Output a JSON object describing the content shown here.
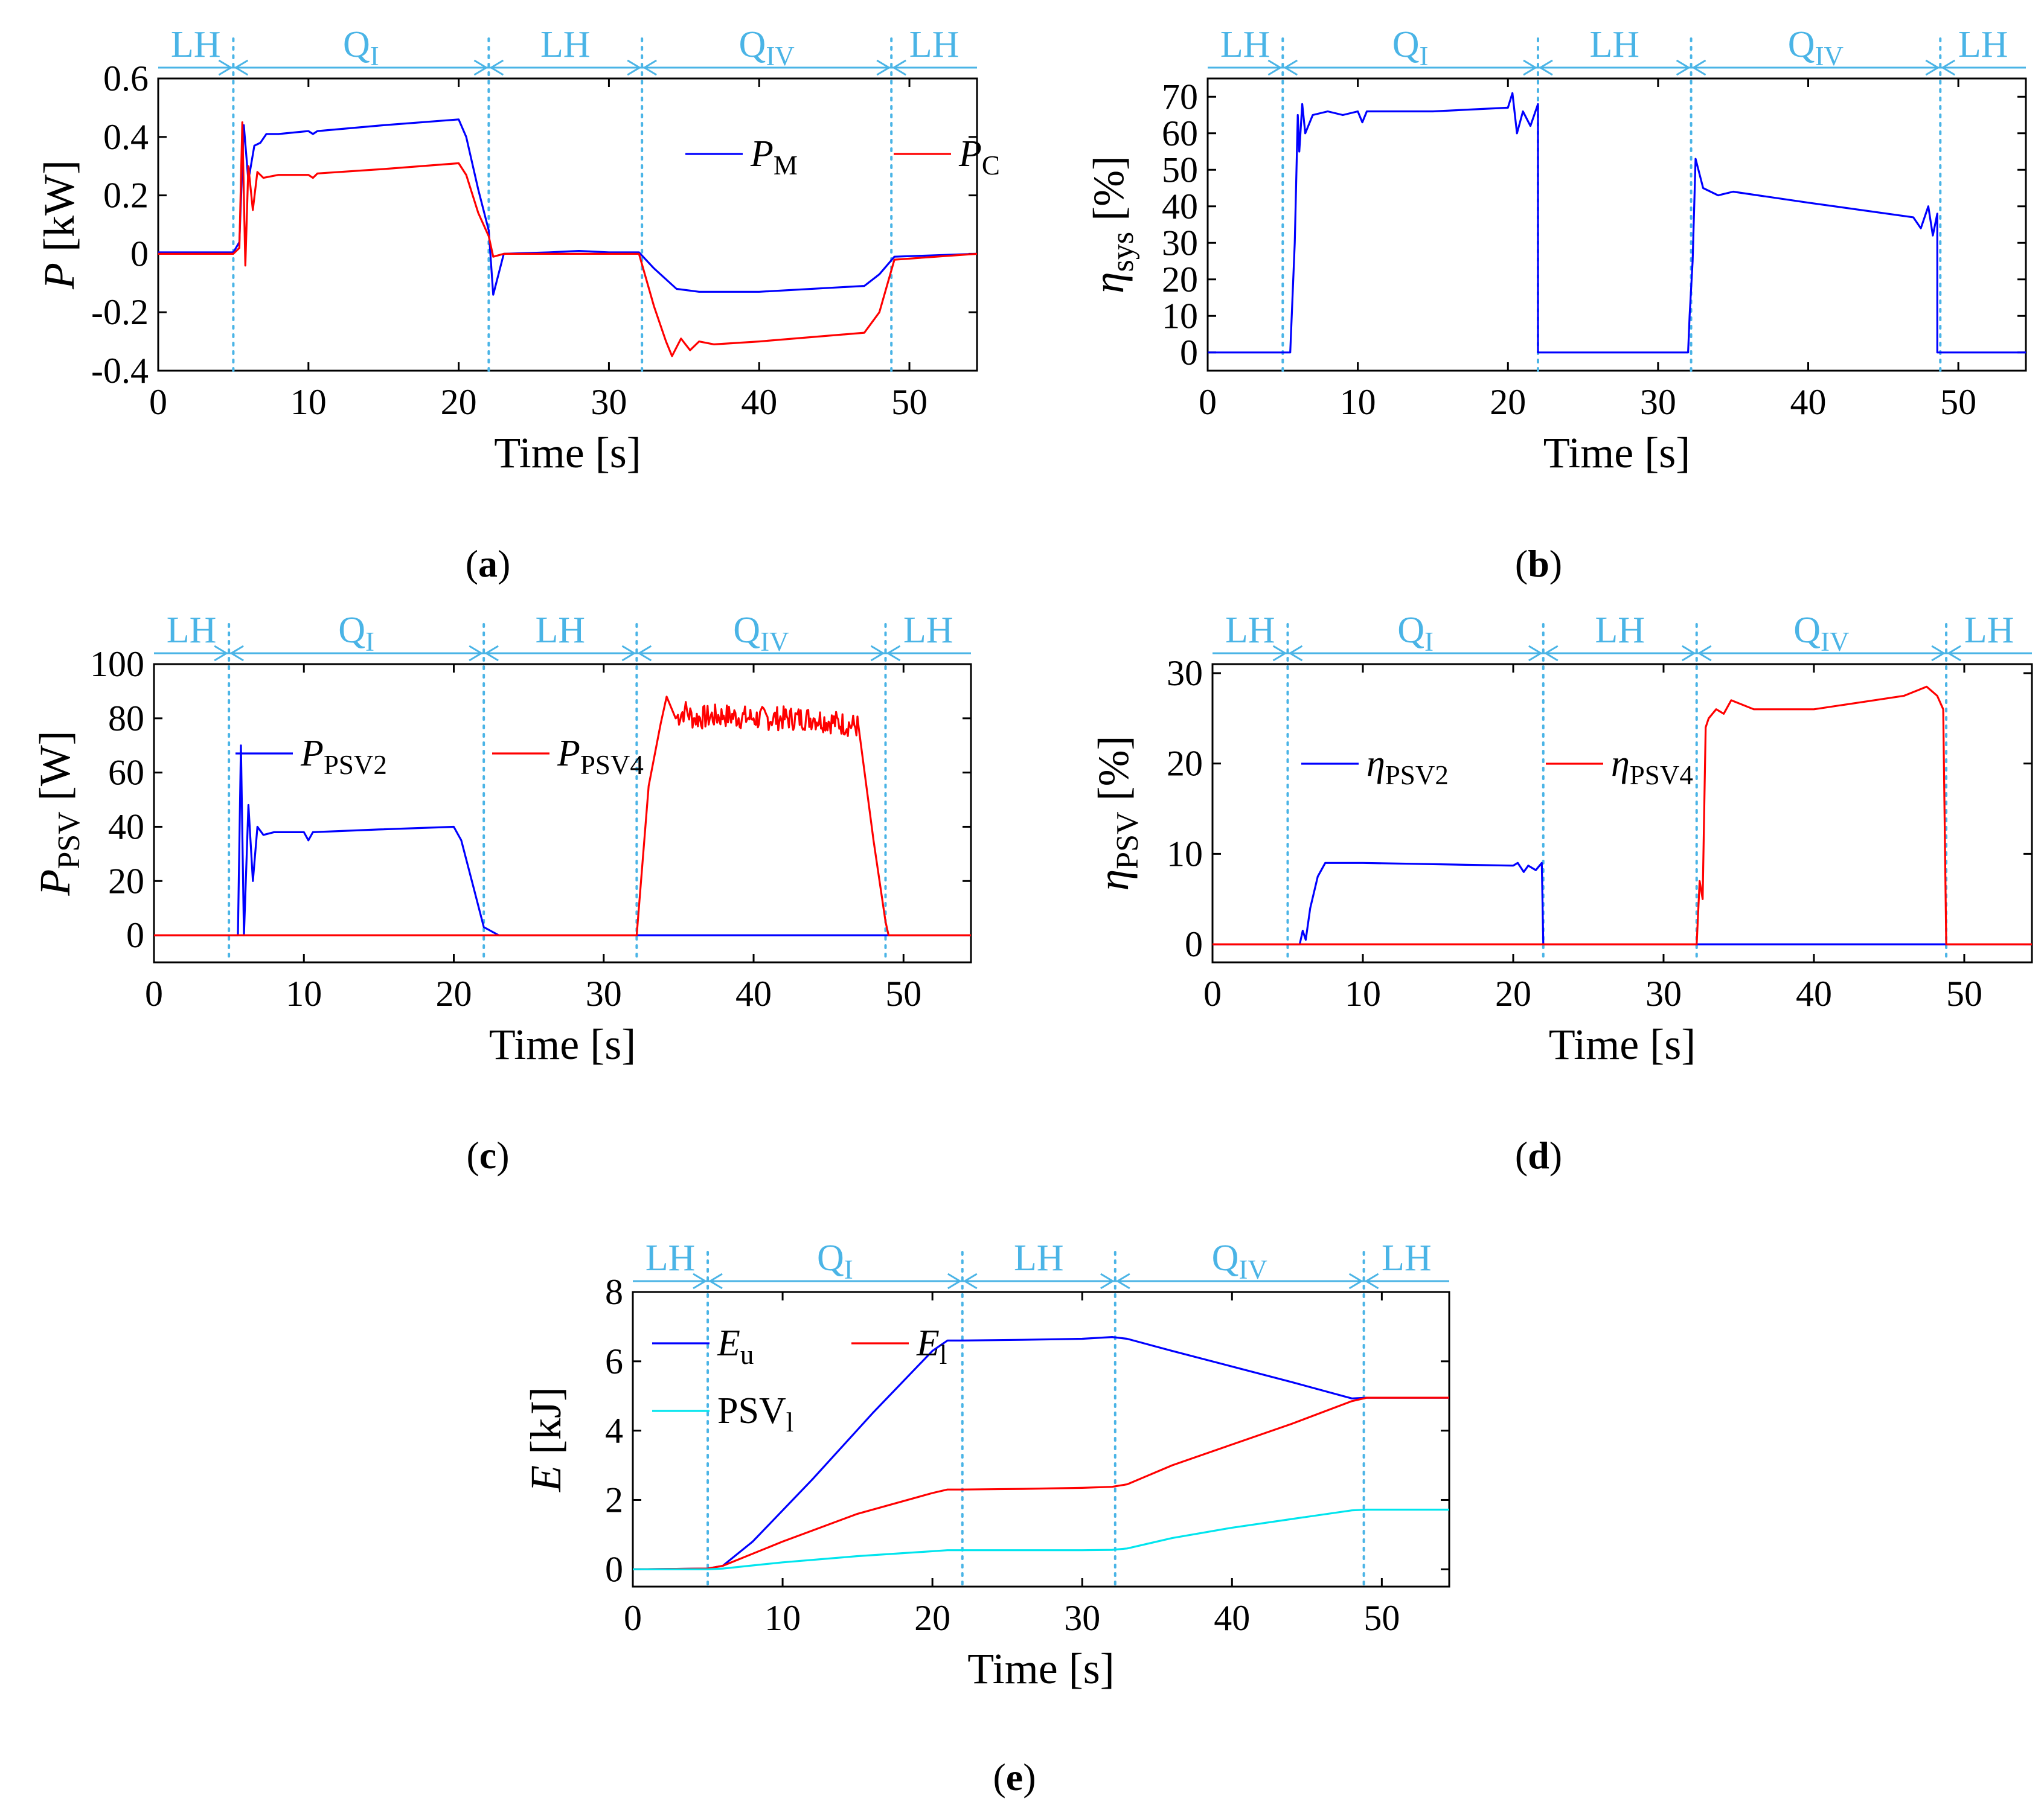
{
  "colors": {
    "phase": "#4ab4e6",
    "blue": "#0000ff",
    "red": "#ff0000",
    "cyan": "#00e5ee",
    "axis": "#000000"
  },
  "chart_data": [
    {
      "panel": "(a)",
      "type": "line",
      "xlabel": "Time [s]",
      "ylabel": {
        "main": "P",
        "rest": " [kW]"
      },
      "xlim": [
        0,
        54.5
      ],
      "ylim": [
        -0.4,
        0.6
      ],
      "xticks": [
        0,
        10,
        20,
        30,
        40,
        50
      ],
      "yticks": [
        -0.4,
        -0.2,
        0,
        0.2,
        0.4,
        0.6
      ],
      "ytick_labels": [
        "-0.4",
        "-0.2",
        "0",
        "0.2",
        "0.4",
        "0.6"
      ],
      "legend_position": "top-right",
      "phase_boundaries": [
        5,
        22,
        32.2,
        48.8
      ],
      "phases": [
        {
          "label": "LH",
          "sub": ""
        },
        {
          "label": "Q",
          "sub": "I"
        },
        {
          "label": "LH",
          "sub": ""
        },
        {
          "label": "Q",
          "sub": "IV"
        },
        {
          "label": "LH",
          "sub": ""
        }
      ],
      "series": [
        {
          "name": "P",
          "sub": "M",
          "color": "blue",
          "x": [
            0,
            5,
            5.4,
            5.7,
            6,
            6.4,
            6.8,
            7.2,
            8,
            10,
            10.3,
            10.6,
            15,
            20,
            20.5,
            21.3,
            22,
            22.3,
            23,
            26,
            28,
            30,
            32,
            33,
            34.5,
            36,
            40,
            47,
            48,
            49,
            54.5
          ],
          "y": [
            0.005,
            0.005,
            0.04,
            0.44,
            0.25,
            0.37,
            0.38,
            0.41,
            0.41,
            0.42,
            0.41,
            0.42,
            0.44,
            0.46,
            0.4,
            0.22,
            0.08,
            -0.14,
            0.0,
            0.005,
            0.01,
            0.005,
            0.005,
            -0.05,
            -0.12,
            -0.13,
            -0.13,
            -0.11,
            -0.07,
            -0.01,
            0.0
          ]
        },
        {
          "name": "P",
          "sub": "C",
          "color": "red",
          "x": [
            0,
            5,
            5.4,
            5.6,
            5.8,
            6,
            6.3,
            6.6,
            7,
            8,
            10,
            10.3,
            10.6,
            15,
            20,
            20.5,
            21.3,
            22,
            22.3,
            23,
            26,
            28,
            30,
            32,
            33,
            33.8,
            34.2,
            34.8,
            35.4,
            36,
            37,
            40,
            47,
            48,
            49,
            54.5
          ],
          "y": [
            0.0,
            0.0,
            0.02,
            0.45,
            -0.04,
            0.3,
            0.15,
            0.28,
            0.26,
            0.27,
            0.27,
            0.26,
            0.275,
            0.29,
            0.31,
            0.27,
            0.14,
            0.06,
            -0.01,
            0.0,
            0.0,
            0.0,
            0.0,
            0.0,
            -0.18,
            -0.3,
            -0.35,
            -0.29,
            -0.33,
            -0.3,
            -0.31,
            -0.3,
            -0.27,
            -0.2,
            -0.02,
            0.0
          ]
        }
      ]
    },
    {
      "panel": "(b)",
      "type": "line",
      "xlabel": "Time [s]",
      "ylabel": {
        "main": "η",
        "sub": "sys",
        "rest": " [%]"
      },
      "xlim": [
        0,
        54.5
      ],
      "ylim": [
        -5,
        75
      ],
      "xticks": [
        0,
        10,
        20,
        30,
        40,
        50
      ],
      "yticks": [
        0,
        10,
        20,
        30,
        40,
        50,
        60,
        70
      ],
      "ytick_labels": [
        "0",
        "10",
        "20",
        "30",
        "40",
        "50",
        "60",
        "70"
      ],
      "phase_boundaries": [
        5,
        22,
        32.2,
        48.8
      ],
      "phases": [
        {
          "label": "LH",
          "sub": ""
        },
        {
          "label": "Q",
          "sub": "I"
        },
        {
          "label": "LH",
          "sub": ""
        },
        {
          "label": "Q",
          "sub": "IV"
        },
        {
          "label": "LH",
          "sub": ""
        }
      ],
      "series": [
        {
          "name": "",
          "sub": "",
          "color": "blue",
          "x": [
            0,
            5.5,
            5.8,
            6.0,
            6.1,
            6.3,
            6.5,
            7,
            8,
            9,
            10,
            10.3,
            10.6,
            15,
            20,
            20.3,
            20.6,
            21,
            21.5,
            22,
            22,
            32,
            32.1,
            32.3,
            32.5,
            33,
            34,
            35,
            40,
            47,
            47.5,
            48,
            48.3,
            48.6,
            48.6,
            54.5
          ],
          "y": [
            0,
            0,
            30,
            65,
            55,
            68,
            60,
            65,
            66,
            65,
            66,
            63,
            66,
            66,
            67,
            71,
            60,
            66,
            62,
            68,
            0,
            0,
            10,
            25,
            53,
            45,
            43,
            44,
            41,
            37,
            34,
            40,
            32,
            38,
            0,
            0
          ]
        }
      ]
    },
    {
      "panel": "(c)",
      "type": "line",
      "xlabel": "Time [s]",
      "ylabel": {
        "main": "P",
        "sub": "PSV",
        "rest": " [W]"
      },
      "xlim": [
        0,
        54.5
      ],
      "ylim": [
        -10,
        100
      ],
      "xticks": [
        0,
        10,
        20,
        30,
        40,
        50
      ],
      "yticks": [
        0,
        20,
        40,
        60,
        80,
        100
      ],
      "ytick_labels": [
        "0",
        "20",
        "40",
        "60",
        "80",
        "100"
      ],
      "legend_position": "top-left",
      "phase_boundaries": [
        5,
        22,
        32.2,
        48.8
      ],
      "phases": [
        {
          "label": "LH",
          "sub": ""
        },
        {
          "label": "Q",
          "sub": "I"
        },
        {
          "label": "LH",
          "sub": ""
        },
        {
          "label": "Q",
          "sub": "IV"
        },
        {
          "label": "LH",
          "sub": ""
        }
      ],
      "series": [
        {
          "name": "P",
          "sub": "PSV2",
          "color": "blue",
          "x": [
            0,
            5.6,
            5.8,
            6.0,
            6.3,
            6.6,
            6.9,
            7.3,
            8,
            10,
            10.3,
            10.6,
            15,
            20,
            20.5,
            21.3,
            22,
            23,
            32,
            32.1,
            54.5
          ],
          "y": [
            0,
            0,
            70,
            0,
            48,
            20,
            40,
            37,
            38,
            38,
            35,
            38,
            39,
            40,
            35,
            18,
            3,
            0,
            0,
            0,
            0
          ]
        },
        {
          "name": "P",
          "sub": "PSV4",
          "color": "red",
          "x": [
            0,
            32.2,
            33,
            33.8,
            34.2,
            34.8,
            35.4,
            36,
            38,
            40,
            44,
            47,
            48,
            48.8,
            49,
            54.5
          ],
          "y": [
            0,
            0,
            55,
            78,
            88,
            80,
            83,
            80,
            81,
            80,
            80,
            77,
            35,
            5,
            0,
            0
          ],
          "noise_between": [
            34.5,
            47.2
          ]
        }
      ]
    },
    {
      "panel": "(d)",
      "type": "line",
      "xlabel": "Time [s]",
      "ylabel": {
        "main": "η",
        "sub": "PSV",
        "rest": " [%]"
      },
      "xlim": [
        0,
        54.5
      ],
      "ylim": [
        -2,
        31
      ],
      "xticks": [
        0,
        10,
        20,
        30,
        40,
        50
      ],
      "yticks": [
        0,
        10,
        20,
        30
      ],
      "ytick_labels": [
        "0",
        "10",
        "20",
        "30"
      ],
      "legend_position": "top-left",
      "phase_boundaries": [
        5,
        22,
        32.2,
        48.8
      ],
      "phases": [
        {
          "label": "LH",
          "sub": ""
        },
        {
          "label": "Q",
          "sub": "I"
        },
        {
          "label": "LH",
          "sub": ""
        },
        {
          "label": "Q",
          "sub": "IV"
        },
        {
          "label": "LH",
          "sub": ""
        }
      ],
      "series": [
        {
          "name": "η",
          "sub": "PSV2",
          "color": "blue",
          "x": [
            0,
            5.8,
            6.0,
            6.2,
            6.5,
            7,
            7.5,
            10,
            20,
            20.3,
            20.7,
            21,
            21.5,
            21.9,
            22,
            22.1,
            54.5
          ],
          "y": [
            0,
            0,
            1.5,
            0.5,
            4,
            7.5,
            9,
            9,
            8.7,
            9,
            8,
            8.7,
            8.2,
            9,
            0,
            0,
            0
          ]
        },
        {
          "name": "η",
          "sub": "PSV4",
          "color": "red",
          "x": [
            0,
            32.2,
            32.4,
            32.6,
            32.8,
            33,
            33.5,
            34,
            34.5,
            36,
            40,
            44,
            46,
            47.5,
            48.2,
            48.6,
            48.8,
            49,
            54.5
          ],
          "y": [
            0,
            0,
            7,
            5,
            24,
            25,
            26,
            25.5,
            27,
            26,
            26,
            27,
            27.5,
            28.5,
            27.5,
            26,
            0,
            0,
            0
          ]
        }
      ]
    },
    {
      "panel": "(e)",
      "type": "line",
      "xlabel": "Time [s]",
      "ylabel": {
        "main": "E",
        "rest": " [kJ]"
      },
      "xlim": [
        0,
        54.5
      ],
      "ylim": [
        -0.5,
        8
      ],
      "xticks": [
        0,
        10,
        20,
        30,
        40,
        50
      ],
      "yticks": [
        0,
        2,
        4,
        6,
        8
      ],
      "ytick_labels": [
        "0",
        "2",
        "4",
        "6",
        "8"
      ],
      "legend_position": "top-left",
      "phase_boundaries": [
        5,
        22,
        32.2,
        48.8
      ],
      "phases": [
        {
          "label": "LH",
          "sub": ""
        },
        {
          "label": "Q",
          "sub": "I"
        },
        {
          "label": "LH",
          "sub": ""
        },
        {
          "label": "Q",
          "sub": "IV"
        },
        {
          "label": "LH",
          "sub": ""
        }
      ],
      "series": [
        {
          "name": "E",
          "sub": "u",
          "color": "blue",
          "x": [
            0,
            5,
            6,
            8,
            12,
            16,
            20,
            21,
            22,
            26,
            30,
            32,
            33,
            36,
            40,
            44,
            48,
            49,
            54.5
          ],
          "y": [
            0,
            0.02,
            0.1,
            0.8,
            2.6,
            4.5,
            6.3,
            6.6,
            6.6,
            6.62,
            6.65,
            6.7,
            6.65,
            6.3,
            5.85,
            5.4,
            4.93,
            4.95,
            4.95
          ]
        },
        {
          "name": "E",
          "sub": "l",
          "color": "red",
          "x": [
            0,
            5,
            6,
            10,
            15,
            20,
            21,
            22,
            26,
            30,
            32,
            33,
            36,
            40,
            44,
            48,
            49,
            54.5
          ],
          "y": [
            0,
            0.02,
            0.1,
            0.8,
            1.6,
            2.2,
            2.3,
            2.3,
            2.32,
            2.35,
            2.38,
            2.45,
            3.0,
            3.6,
            4.2,
            4.85,
            4.95,
            4.95
          ]
        },
        {
          "name": "PSV",
          "sub": "l",
          "color": "cyan",
          "x": [
            0,
            5,
            6,
            10,
            15,
            20,
            21,
            22,
            26,
            30,
            32,
            33,
            36,
            40,
            44,
            48,
            49,
            54.5
          ],
          "y": [
            0,
            0.0,
            0.02,
            0.2,
            0.38,
            0.52,
            0.55,
            0.55,
            0.55,
            0.55,
            0.56,
            0.6,
            0.9,
            1.2,
            1.45,
            1.7,
            1.72,
            1.72
          ]
        }
      ]
    }
  ],
  "captions": [
    "a",
    "b",
    "c",
    "d",
    "e"
  ]
}
